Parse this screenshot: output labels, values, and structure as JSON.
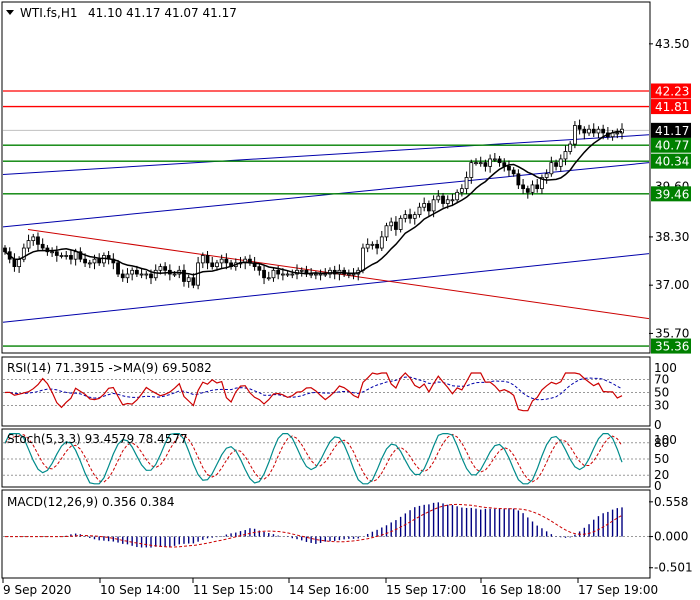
{
  "chart_data": [
    {
      "type": "candlestick",
      "header": {
        "symbol": "WTI.fs,H1",
        "ohlc": "41.10 41.17 41.07 41.17"
      },
      "ylim": [
        35.2,
        44.6
      ],
      "y_ticks": [
        {
          "value": 43.5,
          "label": "43.50"
        },
        {
          "value": 38.3,
          "label": "38.30"
        },
        {
          "value": 37.0,
          "label": "37.00"
        },
        {
          "value": 35.7,
          "label": "35.70"
        }
      ],
      "partially_hidden_tick": "39.60",
      "levels": [
        {
          "value": 42.23,
          "label": "42.23",
          "color": "#ff0000"
        },
        {
          "value": 41.81,
          "label": "41.81",
          "color": "#ff0000"
        },
        {
          "value": 40.77,
          "label": "40.77",
          "color": "#008000"
        },
        {
          "value": 40.34,
          "label": "40.34",
          "color": "#008000"
        },
        {
          "value": 39.46,
          "label": "39.46",
          "color": "#008000"
        },
        {
          "value": 35.36,
          "label": "35.36",
          "color": "#008000"
        }
      ],
      "current_price": {
        "value": 41.17,
        "label": "41.17",
        "color": "#000000"
      },
      "moving_average_color": "#000000",
      "trendline_colors": {
        "channel": "#0000aa",
        "resistance": "#cc0000"
      },
      "x_labels": [
        "9 Sep 2020",
        "10 Sep 14:00",
        "11 Sep 15:00",
        "14 Sep 16:00",
        "15 Sep 17:00",
        "16 Sep 18:00",
        "17 Sep 19:00"
      ],
      "closes_hourly": [
        37.9,
        37.7,
        37.5,
        37.7,
        38.0,
        38.2,
        38.3,
        38.1,
        38.0,
        37.9,
        37.9,
        37.8,
        37.8,
        37.8,
        37.7,
        37.9,
        37.7,
        37.6,
        37.6,
        37.7,
        37.6,
        37.8,
        37.7,
        37.6,
        37.3,
        37.2,
        37.3,
        37.4,
        37.3,
        37.3,
        37.3,
        37.2,
        37.4,
        37.5,
        37.4,
        37.3,
        37.3,
        37.4,
        37.1,
        37.2,
        37.0,
        37.6,
        37.8,
        37.6,
        37.5,
        37.6,
        37.7,
        37.6,
        37.5,
        37.6,
        37.6,
        37.7,
        37.6,
        37.5,
        37.4,
        37.2,
        37.2,
        37.4,
        37.3,
        37.3,
        37.3,
        37.3,
        37.4,
        37.4,
        37.3,
        37.3,
        37.3,
        37.3,
        37.3,
        37.4,
        37.3,
        37.4,
        37.3,
        37.3,
        37.3,
        37.4,
        38.0,
        38.1,
        38.1,
        38.0,
        38.3,
        38.6,
        38.7,
        38.5,
        38.8,
        38.9,
        38.8,
        38.9,
        39.1,
        39.2,
        39.0,
        39.3,
        39.4,
        39.2,
        39.3,
        39.3,
        39.5,
        39.6,
        39.9,
        40.3,
        40.3,
        40.3,
        40.2,
        40.4,
        40.4,
        40.3,
        40.2,
        40.1,
        40.0,
        39.7,
        39.6,
        39.5,
        39.7,
        39.6,
        39.9,
        40.0,
        40.3,
        40.2,
        40.4,
        40.6,
        40.8,
        41.3,
        41.2,
        41.1,
        41.2,
        41.1,
        41.2,
        41.1,
        41.0,
        41.1,
        41.1,
        41.2
      ]
    },
    {
      "type": "line",
      "title": "RSI(14) 71.3915  ->MA(9) 69.5082",
      "ylim": [
        0,
        100
      ],
      "y_ticks": [
        "100",
        "70",
        "50",
        "30",
        "0"
      ],
      "levels": [
        70,
        50,
        30
      ],
      "series": [
        {
          "name": "RSI(14)",
          "color": "#cc0000"
        },
        {
          "name": "MA(9)",
          "color": "#0000aa"
        }
      ]
    },
    {
      "type": "line",
      "title": "Stoch(5,3,3) 93.4579 78.4577",
      "ylim": [
        0,
        100
      ],
      "y_ticks": [
        "100",
        "80",
        "50",
        "20",
        "0"
      ],
      "levels": [
        80,
        50,
        20
      ],
      "series": [
        {
          "name": "Stoch %K",
          "color": "#008b8b"
        },
        {
          "name": "Stoch %D",
          "color": "#cc0000"
        }
      ]
    },
    {
      "type": "bar",
      "title": "MACD(12,26,9) 0.356 0.384",
      "ylim": [
        -0.65,
        0.7
      ],
      "y_ticks": [
        {
          "value": 0.558,
          "label": "0.558"
        },
        {
          "value": 0.0,
          "label": "0.000"
        },
        {
          "value": -0.501,
          "label": "-0.501"
        }
      ],
      "series": [
        {
          "name": "MACD",
          "color": "#000080"
        },
        {
          "name": "Signal",
          "color": "#cc0000"
        }
      ]
    }
  ]
}
